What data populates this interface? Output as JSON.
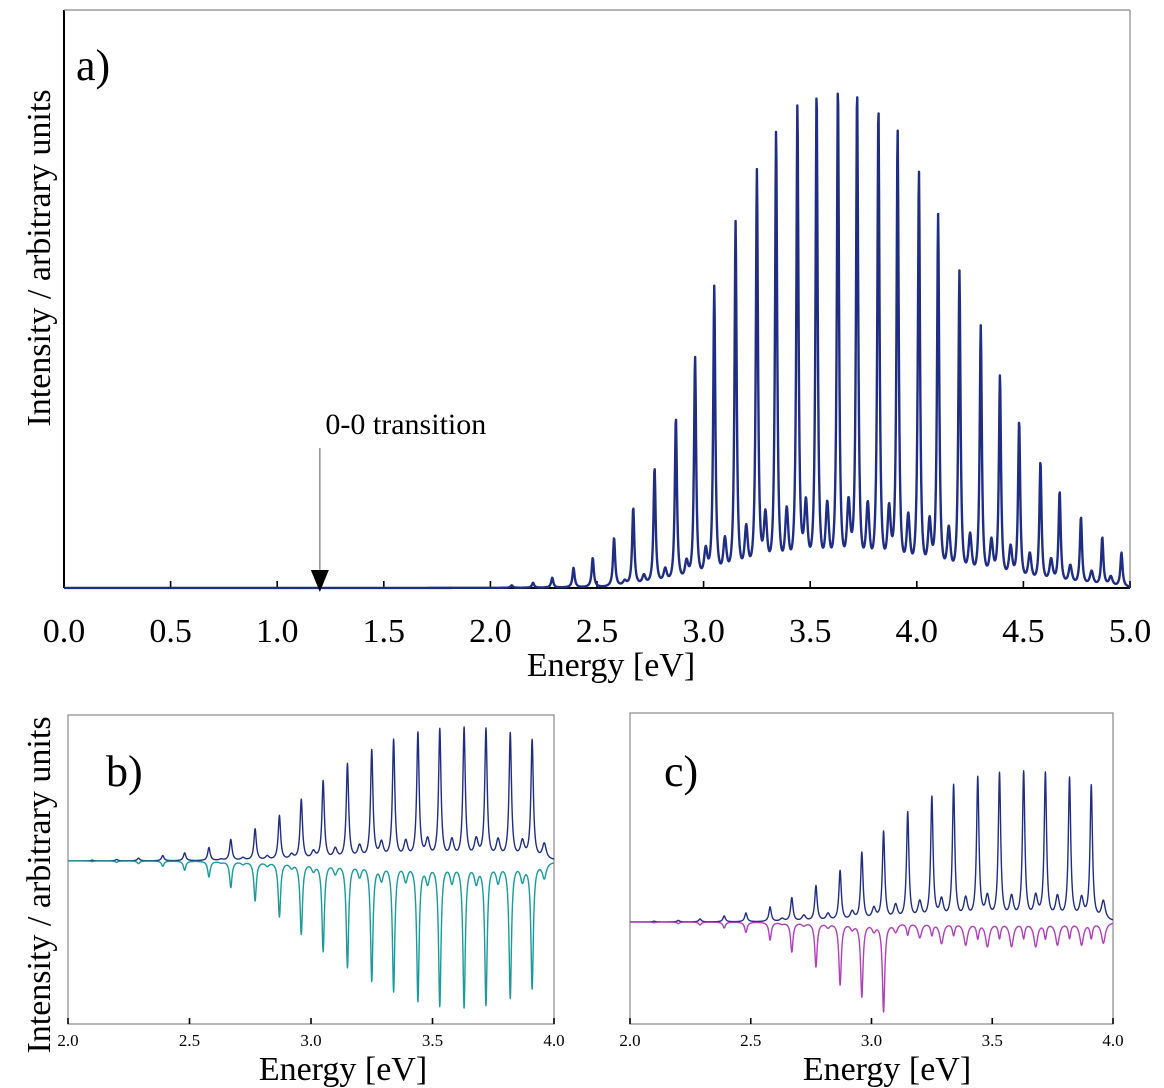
{
  "figure": {
    "shared_ylabel": "Intensity / arbitrary units",
    "colors": {
      "main": "#1f2d82",
      "teal": "#1a9a9a",
      "magenta": "#b040b8",
      "frame": "#000000"
    }
  },
  "chart_data": [
    {
      "panel": "a)",
      "type": "line",
      "xlabel": "Energy [eV]",
      "ylabel": "Intensity / arbitrary units",
      "xlim": [
        0.0,
        5.0
      ],
      "x_ticks": [
        "0.0",
        "0.5",
        "1.0",
        "1.5",
        "2.0",
        "2.5",
        "3.0",
        "3.5",
        "4.0",
        "4.5",
        "5.0"
      ],
      "annotation": {
        "text": "0-0 transition",
        "x": 1.2
      },
      "series": [
        {
          "color": "#1f2d82",
          "peak_width_ev": 0.006,
          "peaks": {
            "positions": [
              2.1,
              2.2,
              2.29,
              2.39,
              2.48,
              2.58,
              2.67,
              2.77,
              2.87,
              2.96,
              3.05,
              3.15,
              3.25,
              3.34,
              3.44,
              3.53,
              3.63,
              3.72,
              3.82,
              3.91,
              4.01,
              4.1,
              4.2,
              4.3,
              4.39,
              4.48,
              4.58,
              4.67,
              4.77,
              4.87,
              4.96
            ],
            "heights": [
              0.005,
              0.01,
              0.02,
              0.04,
              0.06,
              0.1,
              0.16,
              0.24,
              0.34,
              0.46,
              0.6,
              0.73,
              0.83,
              0.91,
              0.96,
              0.99,
              1.0,
              0.99,
              0.96,
              0.91,
              0.83,
              0.74,
              0.63,
              0.52,
              0.42,
              0.33,
              0.25,
              0.19,
              0.14,
              0.1,
              0.07
            ]
          },
          "satellites": {
            "positions": [
              2.63,
              2.72,
              2.82,
              2.92,
              3.01,
              3.1,
              3.2,
              3.29,
              3.39,
              3.48,
              3.58,
              3.68,
              3.77,
              3.87,
              3.96,
              4.06,
              4.15,
              4.25,
              4.35,
              4.44,
              4.53,
              4.63,
              4.72,
              4.82,
              4.91
            ],
            "heights": [
              0.01,
              0.02,
              0.03,
              0.04,
              0.06,
              0.08,
              0.1,
              0.12,
              0.13,
              0.14,
              0.14,
              0.14,
              0.14,
              0.13,
              0.12,
              0.11,
              0.1,
              0.09,
              0.08,
              0.07,
              0.06,
              0.05,
              0.04,
              0.03,
              0.02
            ]
          }
        }
      ]
    },
    {
      "panel": "b)",
      "type": "line",
      "xlabel": "Energy [eV]",
      "ylabel": "Intensity / arbitrary units",
      "xlim": [
        2.0,
        4.0
      ],
      "ylim": [
        -1.2,
        1.0
      ],
      "x_ticks": [
        "2.0",
        "2.5",
        "3.0",
        "3.5",
        "4.0"
      ],
      "series": [
        {
          "color": "#1f2d82",
          "peak_width_ev": 0.006,
          "peaks": {
            "positions": [
              2.1,
              2.2,
              2.29,
              2.39,
              2.48,
              2.58,
              2.67,
              2.77,
              2.87,
              2.96,
              3.05,
              3.15,
              3.25,
              3.34,
              3.44,
              3.53,
              3.63,
              3.72,
              3.82,
              3.91
            ],
            "heights": [
              0.005,
              0.01,
              0.02,
              0.04,
              0.06,
              0.1,
              0.16,
              0.24,
              0.34,
              0.46,
              0.6,
              0.73,
              0.83,
              0.91,
              0.96,
              0.99,
              1.0,
              0.99,
              0.96,
              0.91
            ]
          },
          "satellites": {
            "positions": [
              2.63,
              2.72,
              2.82,
              2.92,
              3.01,
              3.1,
              3.2,
              3.29,
              3.39,
              3.48,
              3.58,
              3.68,
              3.77,
              3.87,
              3.96
            ],
            "heights": [
              0.01,
              0.02,
              0.03,
              0.04,
              0.06,
              0.08,
              0.1,
              0.12,
              0.13,
              0.14,
              0.14,
              0.14,
              0.14,
              0.13,
              0.12
            ]
          }
        },
        {
          "color": "#1a9a9a",
          "peak_width_ev": 0.006,
          "peaks": {
            "positions": [
              2.1,
              2.2,
              2.29,
              2.39,
              2.48,
              2.58,
              2.67,
              2.77,
              2.87,
              2.96,
              3.05,
              3.15,
              3.25,
              3.34,
              3.44,
              3.53,
              3.63,
              3.72,
              3.82,
              3.91
            ],
            "heights": [
              -0.005,
              -0.01,
              -0.02,
              -0.04,
              -0.07,
              -0.12,
              -0.2,
              -0.3,
              -0.42,
              -0.55,
              -0.68,
              -0.8,
              -0.9,
              -0.98,
              -1.05,
              -1.09,
              -1.1,
              -1.08,
              -1.03,
              -0.96
            ]
          },
          "satellites": {
            "positions": [
              2.63,
              2.72,
              2.82,
              2.92,
              3.01,
              3.1,
              3.2,
              3.29,
              3.39,
              3.48,
              3.58,
              3.68,
              3.77,
              3.87,
              3.96
            ],
            "heights": [
              -0.01,
              -0.02,
              -0.03,
              -0.04,
              -0.06,
              -0.08,
              -0.1,
              -0.12,
              -0.13,
              -0.14,
              -0.14,
              -0.14,
              -0.14,
              -0.13,
              -0.12
            ]
          }
        }
      ]
    },
    {
      "panel": "c)",
      "type": "line",
      "xlabel": "Energy [eV]",
      "ylabel": "",
      "xlim": [
        2.0,
        4.0
      ],
      "ylim": [
        -0.65,
        1.3
      ],
      "x_ticks": [
        "2.0",
        "2.5",
        "3.0",
        "3.5",
        "4.0"
      ],
      "series": [
        {
          "color": "#1f2d82",
          "peak_width_ev": 0.006,
          "peaks": {
            "positions": [
              2.1,
              2.2,
              2.29,
              2.39,
              2.48,
              2.58,
              2.67,
              2.77,
              2.87,
              2.96,
              3.05,
              3.15,
              3.25,
              3.34,
              3.44,
              3.53,
              3.63,
              3.72,
              3.82,
              3.91
            ],
            "heights": [
              0.005,
              0.01,
              0.02,
              0.04,
              0.06,
              0.1,
              0.16,
              0.24,
              0.34,
              0.46,
              0.6,
              0.73,
              0.83,
              0.91,
              0.96,
              0.99,
              1.0,
              0.99,
              0.96,
              0.91
            ]
          },
          "satellites": {
            "positions": [
              2.63,
              2.72,
              2.82,
              2.92,
              3.01,
              3.1,
              3.2,
              3.29,
              3.39,
              3.48,
              3.58,
              3.68,
              3.77,
              3.87,
              3.96
            ],
            "heights": [
              0.02,
              0.04,
              0.05,
              0.06,
              0.08,
              0.1,
              0.12,
              0.13,
              0.14,
              0.15,
              0.15,
              0.15,
              0.15,
              0.14,
              0.13
            ]
          }
        },
        {
          "color": "#b040b8",
          "peak_width_ev": 0.006,
          "peaks": {
            "positions": [
              2.1,
              2.2,
              2.29,
              2.39,
              2.48,
              2.58,
              2.67,
              2.77,
              2.87,
              2.96,
              3.05,
              3.15,
              3.25,
              3.34,
              3.44,
              3.53,
              3.63,
              3.72,
              3.82,
              3.91
            ],
            "heights": [
              -0.005,
              -0.01,
              -0.02,
              -0.04,
              -0.07,
              -0.12,
              -0.2,
              -0.3,
              -0.42,
              -0.5,
              -0.6,
              -0.08,
              -0.08,
              -0.08,
              -0.1,
              -0.1,
              -0.1,
              -0.1,
              -0.1,
              -0.1
            ]
          },
          "satellites": {
            "positions": [
              2.63,
              2.72,
              2.82,
              2.92,
              3.01,
              3.1,
              3.2,
              3.29,
              3.39,
              3.48,
              3.58,
              3.68,
              3.77,
              3.87,
              3.96
            ],
            "heights": [
              -0.01,
              -0.02,
              -0.03,
              -0.04,
              -0.05,
              -0.06,
              -0.1,
              -0.14,
              -0.15,
              -0.16,
              -0.16,
              -0.16,
              -0.15,
              -0.15,
              -0.14
            ]
          }
        }
      ]
    }
  ]
}
